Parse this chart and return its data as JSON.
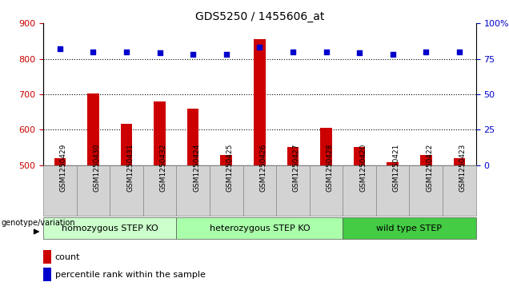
{
  "title": "GDS5250 / 1455606_at",
  "samples": [
    "GSM1250429",
    "GSM1250430",
    "GSM1250431",
    "GSM1250432",
    "GSM1250424",
    "GSM1250425",
    "GSM1250426",
    "GSM1250427",
    "GSM1250428",
    "GSM1250420",
    "GSM1250421",
    "GSM1250422",
    "GSM1250423"
  ],
  "counts": [
    520,
    703,
    617,
    680,
    660,
    530,
    855,
    552,
    606,
    552,
    508,
    530,
    520
  ],
  "percentiles": [
    82,
    80,
    80,
    79,
    78,
    78,
    83,
    80,
    80,
    79,
    78,
    80,
    80
  ],
  "groups": [
    {
      "label": "homozygous STEP KO",
      "start": 0,
      "end": 3
    },
    {
      "label": "heterozygous STEP KO",
      "start": 4,
      "end": 8
    },
    {
      "label": "wild type STEP",
      "start": 9,
      "end": 12
    }
  ],
  "group_colors": [
    "#ccffcc",
    "#aaffaa",
    "#44cc44"
  ],
  "ylim_left": [
    500,
    900
  ],
  "ylim_right": [
    0,
    100
  ],
  "yticks_left": [
    500,
    600,
    700,
    800,
    900
  ],
  "yticks_right": [
    0,
    25,
    50,
    75,
    100
  ],
  "left_color": "#cc0000",
  "right_color": "#0000cc",
  "bar_color": "#cc0000",
  "dot_color": "#0000cc",
  "grid_color": "#000000",
  "legend_count_label": "count",
  "legend_pct_label": "percentile rank within the sample",
  "genotype_label": "genotype/variation"
}
